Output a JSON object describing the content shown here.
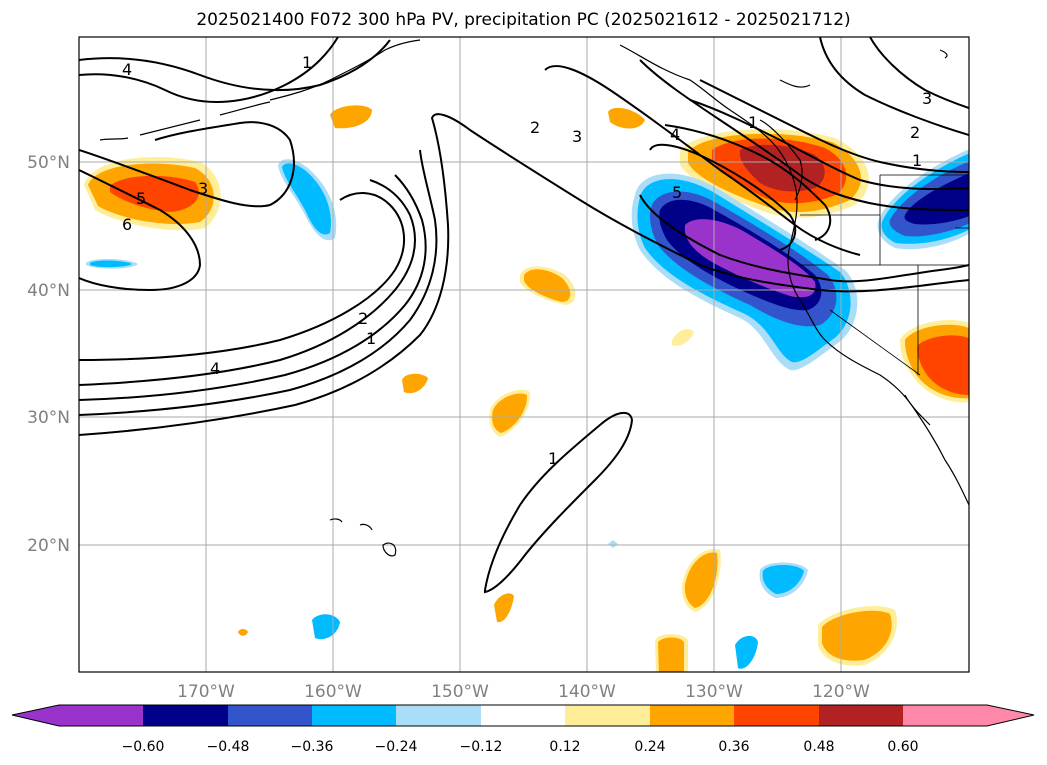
{
  "title": "2025021400 F072 300 hPa PV, precipitation PC (2025021612 - 2025021712)",
  "map": {
    "lon_labels": [
      "170°W",
      "160°W",
      "150°W",
      "140°W",
      "130°W",
      "120°W"
    ],
    "lat_labels": [
      "50°N",
      "40°N",
      "30°N",
      "20°N"
    ],
    "gridline_color": "#aaaaaa",
    "contour_labels": [
      "4",
      "1",
      "2",
      "3",
      "4",
      "5",
      "1",
      "3",
      "2",
      "1",
      "3",
      "5",
      "6",
      "2",
      "1",
      "4",
      "1"
    ]
  },
  "colorbar": {
    "ticks": [
      "−0.60",
      "−0.48",
      "−0.36",
      "−0.24",
      "−0.12",
      "0.12",
      "0.24",
      "0.36",
      "0.48",
      "0.60"
    ],
    "colors": [
      "#9933cc",
      "#000088",
      "#3355cc",
      "#00bbff",
      "#aaddf7",
      "#ffffff",
      "#ffee99",
      "#ffa500",
      "#ff4400",
      "#b22222",
      "#ff88aa"
    ]
  }
}
